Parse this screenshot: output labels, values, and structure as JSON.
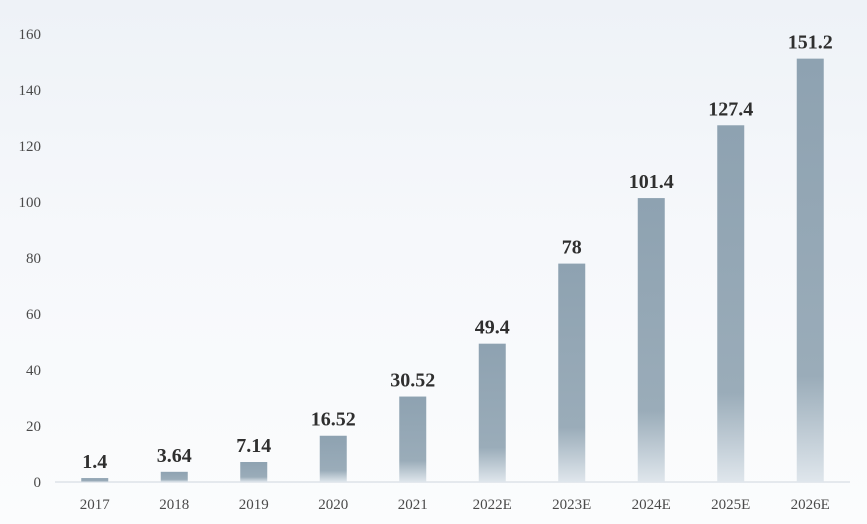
{
  "chart_data": {
    "type": "bar",
    "categories": [
      "2017",
      "2018",
      "2019",
      "2020",
      "2021",
      "2022E",
      "2023E",
      "2024E",
      "2025E",
      "2026E"
    ],
    "values": [
      1.4,
      3.64,
      7.14,
      16.52,
      30.52,
      49.4,
      78,
      101.4,
      127.4,
      151.2
    ],
    "data_labels": [
      "1.4",
      "3.64",
      "7.14",
      "16.52",
      "30.52",
      "49.4",
      "78",
      "101.4",
      "127.4",
      "151.2"
    ],
    "y_ticks": [
      0,
      20,
      40,
      60,
      80,
      100,
      120,
      140,
      160
    ],
    "ylim": [
      0,
      160
    ],
    "title": "",
    "xlabel": "",
    "ylabel": "",
    "grid": false,
    "legend": "none",
    "colors": {
      "bar_top": "#8ea2b1",
      "bar_bottom": "#dfe6ec",
      "label": "#2f2f2f",
      "tick": "#4a4a4a"
    }
  }
}
